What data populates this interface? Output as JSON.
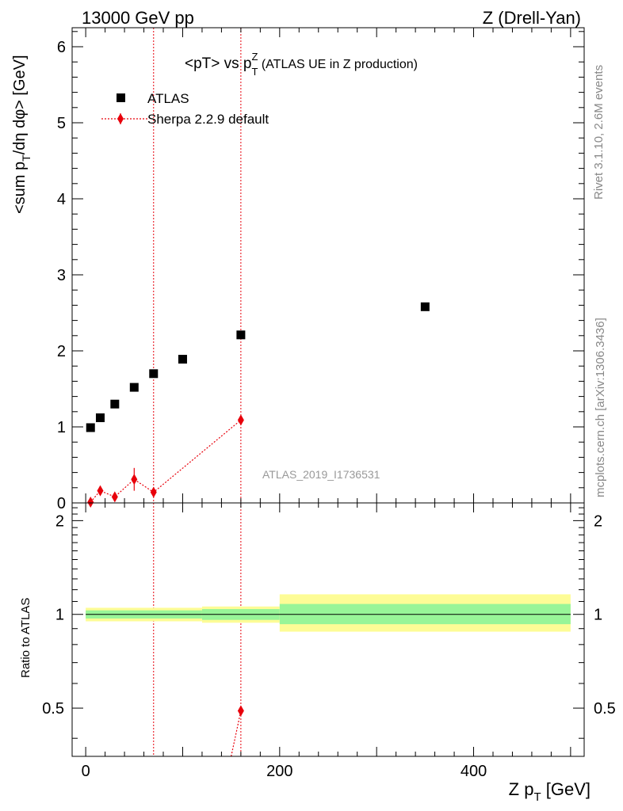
{
  "header": {
    "left": "13000 GeV pp",
    "right": "Z (Drell-Yan)"
  },
  "side_text": {
    "rivet": "Rivet 3.1.10,  2.6M events",
    "mcplots": "mcplots.cern.ch [arXiv:1306.3436]"
  },
  "colors": {
    "mc": "#e8000b",
    "data": "#000000",
    "band_inner": "#98f598",
    "band_outer": "#fdfc96",
    "watermark": "#999999"
  },
  "chart_data": [
    {
      "id": "main",
      "type": "scatter",
      "title": "<pT> vs pTZ (ATLAS UE in Z production)",
      "title_parts": {
        "pre": "<pT> vs p",
        "sup": "Z",
        "sub": "T",
        "post": " (ATLAS UE in Z production)"
      },
      "ylabel": "<sum pT/dη dφ> [GeV]",
      "ylabel_parts": {
        "pre": "<sum p",
        "sub": "T",
        "post": "/dη dφ> [GeV]"
      },
      "xlim": [
        -14,
        514
      ],
      "ylim": [
        0,
        6.25
      ],
      "yticks": [
        0,
        1,
        2,
        3,
        4,
        5,
        6
      ],
      "watermark": "ATLAS_2019_I1736531",
      "legend": {
        "position": "top-left",
        "entries": [
          "ATLAS",
          "Sherpa 2.2.9 default"
        ]
      },
      "series": [
        {
          "name": "ATLAS",
          "marker": "square",
          "x": [
            5,
            15,
            30,
            50,
            70,
            100,
            160,
            350
          ],
          "y": [
            0.99,
            1.12,
            1.3,
            1.52,
            1.7,
            1.89,
            2.21,
            2.58
          ]
        },
        {
          "name": "Sherpa 2.2.9 default",
          "marker": "diamond",
          "line": "dotted",
          "x": [
            5,
            15,
            30,
            50,
            70,
            160
          ],
          "y": [
            0.01,
            0.16,
            0.08,
            0.31,
            0.14,
            1.09
          ],
          "yerr": [
            0.02,
            0.03,
            0.03,
            0.15,
            0.03,
            0.04
          ],
          "vertical_lines_x": [
            70,
            160
          ]
        }
      ]
    },
    {
      "id": "ratio",
      "type": "line",
      "ylabel": "Ratio to ATLAS",
      "xlabel": "Z pT [GeV]",
      "xlabel_parts": {
        "pre": "Z p",
        "sub": "T",
        "post": " [GeV]"
      },
      "xlim": [
        -14,
        514
      ],
      "ylim": [
        0.35,
        2.28
      ],
      "xticks": [
        0,
        200,
        400
      ],
      "yticks": [
        0.5,
        1,
        2
      ],
      "ytick_labels": [
        "0.5",
        "1",
        "2"
      ],
      "bands": [
        {
          "x0": 0,
          "x1": 120,
          "inner": [
            0.97,
            1.03
          ],
          "outer": [
            0.95,
            1.05
          ]
        },
        {
          "x0": 120,
          "x1": 200,
          "inner": [
            0.96,
            1.04
          ],
          "outer": [
            0.94,
            1.06
          ]
        },
        {
          "x0": 200,
          "x1": 500,
          "inner": [
            0.93,
            1.08
          ],
          "outer": [
            0.88,
            1.16
          ]
        }
      ],
      "series": [
        {
          "name": "Sherpa 2.2.9 default",
          "marker": "diamond",
          "line": "dotted",
          "x": [
            160
          ],
          "y": [
            0.49
          ],
          "line_from": {
            "x": 150,
            "y": 0.35
          },
          "vertical_lines_x": [
            70,
            160
          ]
        }
      ]
    }
  ]
}
